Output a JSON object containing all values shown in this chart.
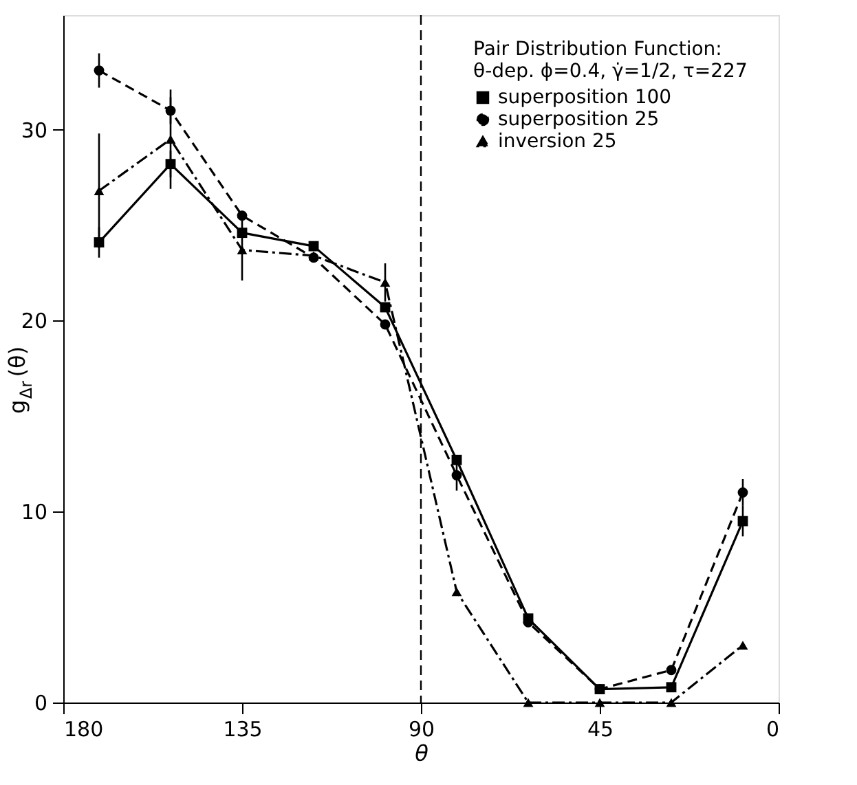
{
  "chart_data": {
    "type": "line",
    "xlabel": "θ",
    "ylabel": "g$_{Δr}$ (θ)",
    "legend_title": [
      "Pair Distribution Function:",
      "θ-dep.  ϕ=0.4, γ̇=1/2, τ=227"
    ],
    "x": [
      171,
      153,
      135,
      117,
      99,
      81,
      63,
      45,
      27,
      9
    ],
    "xlim": [
      180,
      0
    ],
    "xticks": [
      180,
      135,
      90,
      45,
      0
    ],
    "ylim": [
      0,
      36
    ],
    "yticks": [
      0,
      10,
      20,
      30
    ],
    "grid": false,
    "legend": "top right",
    "series": [
      {
        "name": "superposition  100",
        "color": "#000000",
        "marker": "square",
        "line_style": "solid",
        "values": [
          24.1,
          28.2,
          24.6,
          23.9,
          20.7,
          12.7,
          4.4,
          0.7,
          0.8,
          9.5
        ],
        "errors": [
          0.8,
          0.7,
          null,
          null,
          null,
          null,
          null,
          null,
          null,
          0.8
        ]
      },
      {
        "name": "superposition  25",
        "color": "#000000",
        "marker": "circle",
        "line_style": "dashed",
        "values": [
          33.1,
          31.0,
          25.5,
          23.3,
          19.8,
          11.9,
          4.2,
          0.7,
          1.7,
          11.0
        ],
        "errors": [
          0.9,
          0.7,
          null,
          null,
          null,
          0.8,
          null,
          null,
          null,
          0.7
        ]
      },
      {
        "name": "inversion  25",
        "color": "#000000",
        "marker": "triangle",
        "line_style": "dashdot",
        "values": [
          26.8,
          29.5,
          23.7,
          23.4,
          22.0,
          5.8,
          0.0,
          0.0,
          0.0,
          3.0
        ],
        "errors": [
          3.0,
          2.6,
          1.6,
          null,
          1.0,
          null,
          null,
          null,
          null,
          null
        ]
      }
    ],
    "ref_lines": [
      {
        "axis": "x",
        "value": 90,
        "line_style": "dashed",
        "color": "#000000"
      }
    ]
  }
}
